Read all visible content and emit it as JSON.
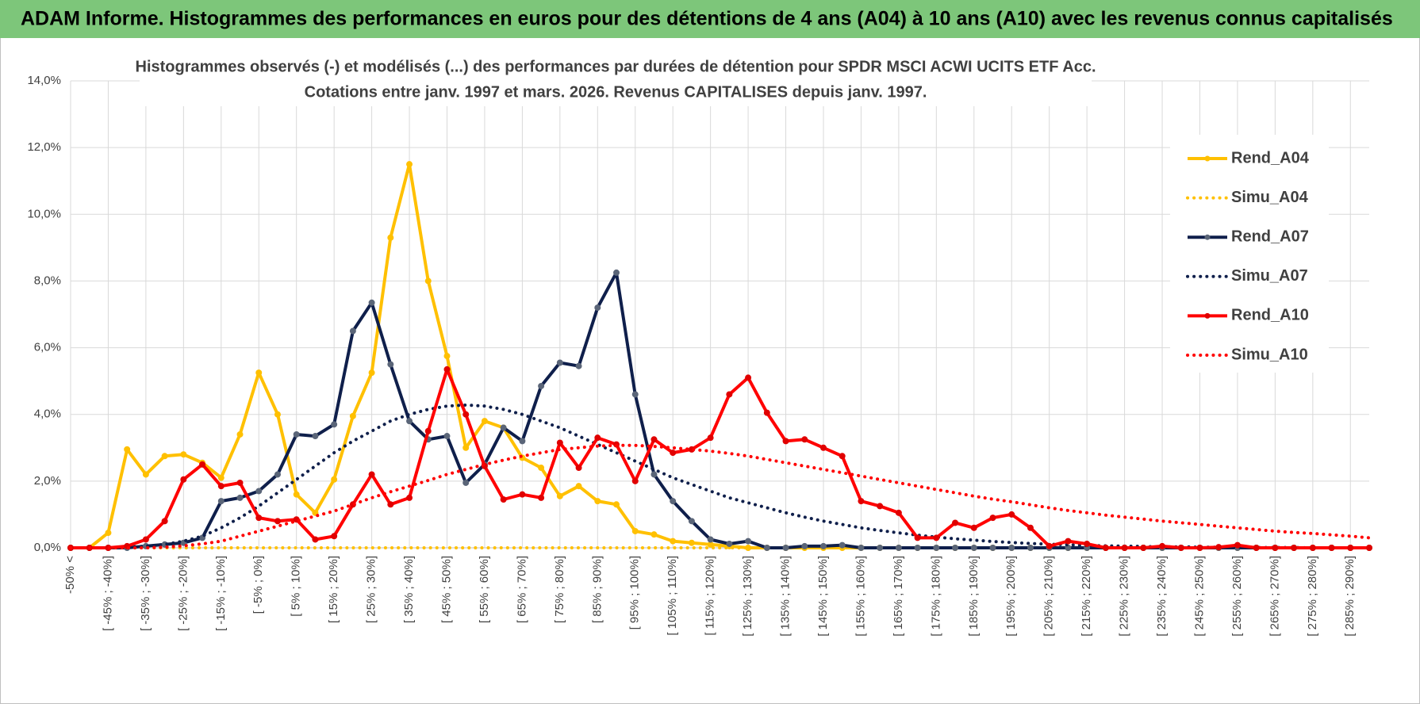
{
  "header": {
    "title": "ADAM Informe. Histogrammes des performances en euros pour des détentions de 4 ans (A04) à 10 ans (A10) avec les revenus connus capitalisés"
  },
  "chart_data": {
    "type": "line",
    "title": "Histogrammes observés (-) et modélisés (...) des performances par durées de détention pour SPDR MSCI ACWI UCITS ETF Acc.",
    "subtitle": "Cotations entre janv. 1997 et mars. 2026.  Revenus CAPITALISES depuis janv. 1997.",
    "categories": [
      "-50% <",
      null,
      "[ -45% ; -40%]",
      null,
      "[ -35% ; -30%]",
      null,
      "[ -25% ; -20%]",
      null,
      "[ -15% ; -10%]",
      null,
      "[ -5% ; 0%]",
      null,
      "[ 5% ; 10%]",
      null,
      "[ 15% ; 20%]",
      null,
      "[ 25% ; 30%]",
      null,
      "[ 35% ; 40%]",
      null,
      "[ 45% ; 50%]",
      null,
      "[ 55% ; 60%]",
      null,
      "[ 65% ; 70%]",
      null,
      "[ 75% ; 80%]",
      null,
      "[ 85% ; 90%]",
      null,
      "[ 95% ; 100%]",
      null,
      "[ 105% ; 110%]",
      null,
      "[ 115% ; 120%]",
      null,
      "[ 125% ; 130%]",
      null,
      "[ 135% ; 140%]",
      null,
      "[ 145% ; 150%]",
      null,
      "[ 155% ; 160%]",
      null,
      "[ 165% ; 170%]",
      null,
      "[ 175% ; 180%]",
      null,
      "[ 185% ; 190%]",
      null,
      "[ 195% ; 200%]",
      null,
      "[ 205% ; 210%]",
      null,
      "[ 215% ; 220%]",
      null,
      "[ 225% ; 230%]",
      null,
      "[ 235% ; 240%]",
      null,
      "[ 245% ; 250%]",
      null,
      "[ 255% ; 260%]",
      null,
      "[ 265% ; 270%]",
      null,
      "[ 275% ; 280%]",
      null,
      "[ 285% ; 290%]",
      null
    ],
    "series": [
      {
        "name": "Rend_A04",
        "color": "#FFC000",
        "marker_color": "#FFC000",
        "style": "solid",
        "markers": true,
        "values": [
          0,
          0,
          0.45,
          2.95,
          2.2,
          2.75,
          2.8,
          2.55,
          2.1,
          3.4,
          5.25,
          4.0,
          1.6,
          1.05,
          2.05,
          3.95,
          5.25,
          9.3,
          11.5,
          8.0,
          5.75,
          3.0,
          3.8,
          3.6,
          2.7,
          2.4,
          1.55,
          1.85,
          1.4,
          1.3,
          0.5,
          0.4,
          0.2,
          0.15,
          0.1,
          0.05,
          0,
          0,
          0,
          0,
          0,
          0,
          0,
          0,
          0,
          0,
          0,
          0,
          0,
          0,
          0,
          0,
          0,
          0,
          0,
          0,
          0,
          0,
          0,
          0,
          0,
          0,
          0,
          0,
          0,
          0,
          0,
          0,
          0,
          0
        ]
      },
      {
        "name": "Simu_A04",
        "color": "#FFC000",
        "style": "dotted",
        "markers": false,
        "values": [
          0,
          0,
          0,
          0,
          0,
          0,
          0,
          0,
          0,
          0,
          0,
          0,
          0,
          0,
          0,
          0,
          0,
          0,
          0,
          0,
          0,
          0,
          0,
          0,
          0,
          0,
          0,
          0,
          0,
          0,
          0,
          0,
          0,
          0,
          0,
          0,
          0,
          0,
          0,
          0,
          0,
          0,
          0,
          0,
          0,
          0,
          0,
          0,
          0,
          0,
          0,
          0,
          0,
          0,
          0,
          0,
          0,
          0,
          0,
          0,
          0,
          0,
          0,
          0,
          0,
          0,
          0,
          0,
          0,
          0
        ]
      },
      {
        "name": "Rend_A07",
        "color": "#0F1F4B",
        "marker_color": "#5A6578",
        "style": "solid",
        "markers": true,
        "values": [
          0,
          0,
          0,
          0,
          0.05,
          0.1,
          0.15,
          0.3,
          1.4,
          1.5,
          1.7,
          2.2,
          3.4,
          3.35,
          3.7,
          6.5,
          7.35,
          5.5,
          3.8,
          3.25,
          3.35,
          1.95,
          2.5,
          3.6,
          3.2,
          4.85,
          5.55,
          5.45,
          7.2,
          8.25,
          4.6,
          2.2,
          1.4,
          0.8,
          0.25,
          0.12,
          0.2,
          0,
          0,
          0.05,
          0.05,
          0.08,
          0,
          0,
          0,
          0,
          0,
          0,
          0,
          0,
          0,
          0,
          0,
          0,
          0,
          0,
          0,
          0,
          0,
          0,
          0,
          0,
          0,
          0,
          0,
          0,
          0,
          0,
          0,
          0
        ]
      },
      {
        "name": "Simu_A07",
        "color": "#0F1F4B",
        "style": "dotted",
        "markers": false,
        "values": [
          0,
          0,
          0,
          0.02,
          0.05,
          0.1,
          0.2,
          0.35,
          0.6,
          0.9,
          1.25,
          1.65,
          2.05,
          2.45,
          2.85,
          3.2,
          3.5,
          3.8,
          4.0,
          4.15,
          4.25,
          4.28,
          4.25,
          4.15,
          4.0,
          3.8,
          3.6,
          3.35,
          3.1,
          2.85,
          2.6,
          2.35,
          2.1,
          1.9,
          1.7,
          1.5,
          1.35,
          1.2,
          1.05,
          0.92,
          0.8,
          0.7,
          0.6,
          0.52,
          0.45,
          0.38,
          0.32,
          0.27,
          0.23,
          0.19,
          0.16,
          0.13,
          0.11,
          0.09,
          0.07,
          0.06,
          0.05,
          0.04,
          0.03,
          0.03,
          0.02,
          0.02,
          0.01,
          0.01,
          0.01,
          0.01,
          0,
          0,
          0,
          0
        ]
      },
      {
        "name": "Rend_A10",
        "color": "#FF0000",
        "marker_color": "#E00000",
        "style": "solid",
        "markers": true,
        "values": [
          0,
          0,
          0,
          0.05,
          0.25,
          0.8,
          2.05,
          2.5,
          1.85,
          1.95,
          0.9,
          0.8,
          0.85,
          0.25,
          0.35,
          1.3,
          2.2,
          1.3,
          1.5,
          3.5,
          5.35,
          4.0,
          2.45,
          1.45,
          1.6,
          1.5,
          3.15,
          2.4,
          3.3,
          3.1,
          2.0,
          3.25,
          2.85,
          2.95,
          3.3,
          4.6,
          5.1,
          4.05,
          3.2,
          3.25,
          3.0,
          2.75,
          1.4,
          1.25,
          1.05,
          0.3,
          0.3,
          0.75,
          0.6,
          0.9,
          1.0,
          0.6,
          0.05,
          0.2,
          0.12,
          0,
          0,
          0,
          0.05,
          0,
          0,
          0.02,
          0.08,
          0,
          0,
          0,
          0,
          0,
          0,
          0
        ]
      },
      {
        "name": "Simu_A10",
        "color": "#FF0000",
        "style": "dotted",
        "markers": false,
        "values": [
          0,
          0,
          0,
          0,
          0,
          0.02,
          0.06,
          0.12,
          0.2,
          0.35,
          0.5,
          0.65,
          0.8,
          0.95,
          1.1,
          1.3,
          1.5,
          1.68,
          1.85,
          2.02,
          2.2,
          2.35,
          2.5,
          2.63,
          2.75,
          2.85,
          2.95,
          3.0,
          3.05,
          3.07,
          3.07,
          3.04,
          3.0,
          2.95,
          2.9,
          2.83,
          2.75,
          2.65,
          2.55,
          2.45,
          2.35,
          2.25,
          2.15,
          2.05,
          1.95,
          1.85,
          1.75,
          1.65,
          1.55,
          1.46,
          1.38,
          1.29,
          1.2,
          1.12,
          1.05,
          0.98,
          0.92,
          0.86,
          0.8,
          0.75,
          0.7,
          0.65,
          0.6,
          0.55,
          0.5,
          0.46,
          0.43,
          0.39,
          0.35,
          0.3
        ]
      }
    ],
    "ylim": [
      0,
      14
    ],
    "yticks": [
      {
        "value": 0,
        "label": "0,0%"
      },
      {
        "value": 2,
        "label": "2,0%"
      },
      {
        "value": 4,
        "label": "4,0%"
      },
      {
        "value": 6,
        "label": "6,0%"
      },
      {
        "value": 8,
        "label": "8,0%"
      },
      {
        "value": 10,
        "label": "10,0%"
      },
      {
        "value": 12,
        "label": "12,0%"
      },
      {
        "value": 14,
        "label": "14,0%"
      }
    ],
    "grid": true,
    "legend": "right"
  }
}
